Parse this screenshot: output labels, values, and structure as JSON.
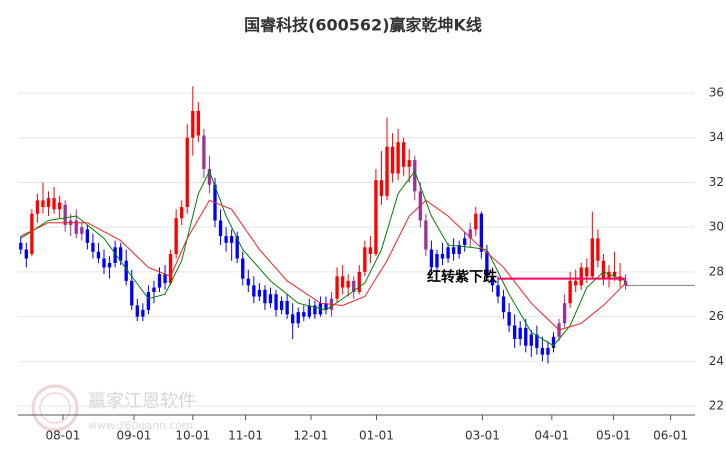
{
  "chart_data": {
    "type": "candlestick",
    "title": "国睿科技(600562)赢家乾坤K线",
    "watermark": {
      "text": "赢家江恩软件",
      "url": "www.360gann.com"
    },
    "xlim": [
      -0.5,
      121.5
    ],
    "ylim": [
      21.6,
      40.16
    ],
    "yticks": [
      22,
      24,
      26,
      28,
      30,
      32,
      34,
      36
    ],
    "grid": true,
    "xticks": [
      {
        "value": 7.6,
        "label": "08-01"
      },
      {
        "value": 20.4,
        "label": "09-01"
      },
      {
        "value": 31,
        "label": "10-01"
      },
      {
        "value": 40.5,
        "label": "11-01"
      },
      {
        "value": 52.3,
        "label": "12-01"
      },
      {
        "value": 64.1,
        "label": "01-01"
      },
      {
        "value": 83.2,
        "label": "03-01"
      },
      {
        "value": 95.7,
        "label": "04-01"
      },
      {
        "value": 106.8,
        "label": "05-01"
      },
      {
        "value": 117.1,
        "label": "06-01"
      }
    ],
    "segments": [
      {
        "color": "#0000ff",
        "candles": [
          [
            29.3,
            29.6,
            28.8,
            29.0
          ],
          [
            29.0,
            29.3,
            28.2,
            28.6
          ]
        ]
      },
      {
        "color": "#ff0000",
        "candles": [
          [
            28.8,
            30.8,
            28.7,
            30.6
          ],
          [
            30.6,
            31.5,
            30.2,
            31.2
          ],
          [
            31.2,
            32.0,
            30.6,
            30.9
          ],
          [
            30.9,
            31.6,
            30.5,
            31.3
          ],
          [
            31.3,
            31.8,
            30.6,
            30.8
          ],
          [
            30.8,
            31.4,
            30.4,
            31.1
          ]
        ]
      },
      {
        "color": "#993399",
        "candles": [
          [
            31.0,
            31.2,
            29.8,
            30.1
          ],
          [
            30.1,
            30.6,
            29.6,
            30.3
          ],
          [
            30.3,
            30.8,
            29.5,
            29.7
          ],
          [
            29.7,
            30.2,
            29.4,
            30.0
          ]
        ]
      },
      {
        "color": "#0000ff",
        "candles": [
          [
            29.9,
            30.1,
            29.0,
            29.3
          ],
          [
            29.3,
            29.7,
            28.6,
            28.9
          ],
          [
            28.9,
            29.3,
            28.4,
            28.6
          ],
          [
            28.6,
            29.0,
            27.9,
            28.2
          ],
          [
            28.2,
            28.7,
            27.7,
            28.4
          ],
          [
            28.4,
            29.4,
            28.2,
            29.1
          ],
          [
            29.1,
            29.3,
            28.3,
            28.5
          ],
          [
            28.5,
            29.0,
            27.4,
            27.6
          ],
          [
            27.6,
            28.1,
            26.3,
            26.5
          ],
          [
            26.5,
            26.8,
            25.8,
            26.0
          ],
          [
            26.0,
            26.6,
            25.8,
            26.3
          ],
          [
            26.3,
            27.4,
            26.1,
            27.1
          ],
          [
            27.1,
            27.6,
            26.6,
            27.3
          ],
          [
            27.3,
            28.2,
            27.1,
            27.9
          ],
          [
            27.9,
            28.3,
            27.2,
            27.5
          ]
        ]
      },
      {
        "color": "#ff0000",
        "candles": [
          [
            27.5,
            29.0,
            27.4,
            28.8
          ],
          [
            28.8,
            30.8,
            28.6,
            30.4
          ],
          [
            30.4,
            31.2,
            30.1,
            30.9
          ],
          [
            30.9,
            34.6,
            30.6,
            34.0
          ],
          [
            34.0,
            36.3,
            33.2,
            35.2
          ],
          [
            35.2,
            35.6,
            33.8,
            34.1
          ]
        ]
      },
      {
        "color": "#993399",
        "candles": [
          [
            34.1,
            34.4,
            32.2,
            32.6
          ],
          [
            32.6,
            33.2,
            31.5,
            31.9
          ]
        ]
      },
      {
        "color": "#0000ff",
        "candles": [
          [
            31.9,
            32.2,
            30.0,
            30.3
          ],
          [
            30.3,
            30.8,
            29.2,
            29.6
          ],
          [
            29.6,
            30.0,
            28.9,
            29.3
          ],
          [
            29.3,
            29.9,
            28.5,
            29.6
          ],
          [
            29.6,
            29.8,
            28.4,
            28.6
          ],
          [
            28.6,
            28.9,
            27.4,
            27.7
          ],
          [
            27.7,
            28.1,
            27.1,
            27.4
          ],
          [
            27.4,
            27.8,
            26.6,
            26.9
          ],
          [
            26.9,
            27.5,
            26.7,
            27.2
          ],
          [
            27.2,
            27.4,
            26.3,
            26.6
          ],
          [
            26.6,
            27.3,
            26.4,
            27.0
          ],
          [
            27.0,
            27.2,
            26.0,
            26.3
          ],
          [
            26.3,
            26.9,
            26.1,
            26.7
          ],
          [
            26.7,
            27.0,
            25.9,
            26.1
          ],
          [
            26.1,
            26.6,
            25.0,
            25.7
          ],
          [
            25.7,
            26.4,
            25.5,
            26.2
          ],
          [
            26.2,
            26.5,
            25.8,
            26.0
          ],
          [
            26.0,
            26.8,
            25.9,
            26.5
          ],
          [
            26.5,
            26.7,
            25.9,
            26.1
          ],
          [
            26.1,
            26.9,
            26.0,
            26.6
          ],
          [
            26.6,
            26.9,
            26.1,
            26.3
          ]
        ]
      },
      {
        "color": "#993399",
        "candles": [
          [
            26.3,
            27.1,
            26.0,
            26.8
          ]
        ]
      },
      {
        "color": "#ff0000",
        "candles": [
          [
            26.8,
            28.2,
            26.6,
            27.8
          ],
          [
            27.8,
            28.3,
            27.0,
            27.3
          ],
          [
            27.3,
            27.9,
            26.9,
            27.6
          ]
        ]
      },
      {
        "color": "#993399",
        "candles": [
          [
            27.6,
            27.8,
            26.8,
            27.1
          ]
        ]
      },
      {
        "color": "#ff0000",
        "candles": [
          [
            27.1,
            28.3,
            27.0,
            28.0
          ],
          [
            28.0,
            29.4,
            27.8,
            29.1
          ],
          [
            29.1,
            29.6,
            28.4,
            28.8
          ],
          [
            28.8,
            32.6,
            28.7,
            32.1
          ],
          [
            32.1,
            33.4,
            31.0,
            31.4
          ],
          [
            31.4,
            34.9,
            31.2,
            33.6
          ],
          [
            33.6,
            34.2,
            32.0,
            32.4
          ],
          [
            32.4,
            34.4,
            32.1,
            33.8
          ],
          [
            33.8,
            34.0,
            32.3,
            32.7
          ],
          [
            32.7,
            33.5,
            32.0,
            33.0
          ]
        ]
      },
      {
        "color": "#993399",
        "candles": [
          [
            33.0,
            33.2,
            31.2,
            31.6
          ],
          [
            31.6,
            32.0,
            30.0,
            30.3
          ],
          [
            30.3,
            30.6,
            28.7,
            29.0
          ]
        ]
      },
      {
        "color": "#0000ff",
        "candles": [
          [
            29.0,
            29.4,
            27.9,
            28.2
          ],
          [
            28.2,
            29.0,
            27.8,
            28.8
          ],
          [
            28.8,
            29.3,
            28.3,
            28.6
          ],
          [
            28.6,
            29.3,
            28.4,
            29.1
          ],
          [
            29.1,
            29.5,
            28.5,
            28.8
          ],
          [
            28.8,
            29.4,
            28.6,
            29.2
          ],
          [
            29.2,
            29.8,
            28.9,
            29.5
          ]
        ]
      },
      {
        "color": "#993399",
        "candles": [
          [
            29.5,
            30.2,
            29.1,
            29.9
          ]
        ]
      },
      {
        "color": "#ff0000",
        "candles": [
          [
            29.9,
            30.9,
            29.6,
            30.6
          ]
        ]
      },
      {
        "color": "#0000ff",
        "candles": [
          [
            30.6,
            30.7,
            28.6,
            28.9
          ],
          [
            28.9,
            29.2,
            27.6,
            27.8
          ],
          [
            27.8,
            28.2,
            27.1,
            27.4
          ],
          [
            27.4,
            27.8,
            26.6,
            26.9
          ],
          [
            26.9,
            27.2,
            25.9,
            26.2
          ],
          [
            26.2,
            26.6,
            25.3,
            25.6
          ],
          [
            25.6,
            26.1,
            24.6,
            25.0
          ],
          [
            25.0,
            25.8,
            24.7,
            25.5
          ],
          [
            25.5,
            25.9,
            24.4,
            24.7
          ],
          [
            24.7,
            25.4,
            24.2,
            25.2
          ],
          [
            25.2,
            25.6,
            24.3,
            24.6
          ],
          [
            24.6,
            25.1,
            24.0,
            24.3
          ],
          [
            24.3,
            24.9,
            23.9,
            24.6
          ],
          [
            24.6,
            25.3,
            24.4,
            25.1
          ]
        ]
      },
      {
        "color": "#993399",
        "candles": [
          [
            25.1,
            25.9,
            24.9,
            25.7
          ],
          [
            25.7,
            27.0,
            25.5,
            26.6
          ]
        ]
      },
      {
        "color": "#ff0000",
        "candles": [
          [
            26.6,
            28.0,
            26.4,
            27.6
          ],
          [
            27.6,
            28.1,
            27.1,
            27.4
          ],
          [
            27.4,
            28.4,
            27.2,
            28.2
          ],
          [
            28.2,
            28.6,
            27.5,
            27.8
          ],
          [
            27.8,
            30.7,
            27.7,
            29.5
          ],
          [
            29.5,
            29.9,
            28.2,
            28.5
          ],
          [
            28.5,
            28.8,
            27.4,
            27.7
          ],
          [
            27.7,
            28.3,
            27.3,
            28.0
          ],
          [
            28.0,
            28.9,
            27.6,
            27.8
          ],
          [
            27.8,
            28.4,
            27.3,
            27.6
          ]
        ]
      },
      {
        "color": "#993399",
        "candles": [
          [
            27.6,
            27.9,
            27.2,
            27.4
          ]
        ]
      }
    ],
    "lines": [
      {
        "color": "#008000",
        "x": [
          0,
          5,
          10,
          15,
          20,
          23,
          26,
          29,
          32,
          34,
          37,
          40,
          45,
          50,
          55,
          58,
          62,
          65,
          68,
          71,
          74,
          77,
          81,
          84,
          88,
          92,
          96,
          99,
          102,
          105,
          109
        ],
        "values": [
          29.5,
          30.3,
          30.5,
          29.5,
          27.8,
          26.8,
          27.0,
          28.5,
          31.5,
          32.5,
          30.5,
          29,
          27.6,
          26.6,
          26.3,
          26.8,
          27.5,
          29,
          31.5,
          32.5,
          30.5,
          29.2,
          29.1,
          29.0,
          27,
          25.3,
          24.7,
          25.6,
          27.3,
          28.0,
          27.6
        ]
      },
      {
        "color": "#ee2222",
        "x": [
          0,
          5,
          12,
          18,
          23,
          27,
          30,
          34,
          38,
          43,
          48,
          54,
          58,
          62,
          66,
          70,
          73,
          77,
          82,
          87,
          92,
          97,
          101,
          105,
          109
        ],
        "values": [
          29.6,
          30.2,
          30.2,
          29.4,
          28.2,
          27.8,
          29.5,
          31.2,
          30.8,
          29.0,
          27.6,
          26.6,
          26.5,
          26.9,
          28.5,
          30.5,
          31.2,
          30.5,
          29.3,
          28.2,
          26.6,
          25.4,
          25.7,
          26.5,
          27.5
        ]
      }
    ],
    "annotation": {
      "text": "红转紫下跌",
      "color": "#ff0066",
      "value": 27.7,
      "x": [
        86,
        109
      ]
    },
    "reference_line": {
      "value": 27.4,
      "x": [
        109,
        121.5
      ]
    }
  }
}
